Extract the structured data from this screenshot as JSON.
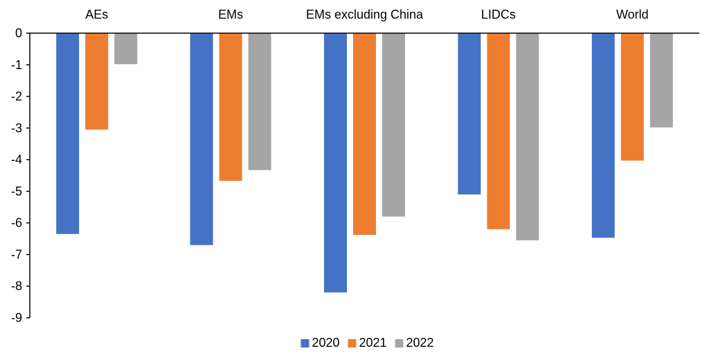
{
  "chart_data": {
    "type": "bar",
    "categories": [
      "AEs",
      "EMs",
      "EMs excluding China",
      "LIDCs",
      "World"
    ],
    "series": [
      {
        "name": "2020",
        "values": [
          -6.35,
          -6.7,
          -8.2,
          -5.1,
          -6.47
        ],
        "color": "#4472C4"
      },
      {
        "name": "2021",
        "values": [
          -3.05,
          -4.67,
          -6.38,
          -6.2,
          -4.03
        ],
        "color": "#ED7D31"
      },
      {
        "name": "2022",
        "values": [
          -0.98,
          -4.33,
          -5.8,
          -6.55,
          -2.98
        ],
        "color": "#A5A5A5"
      }
    ],
    "ylim": [
      -9,
      0
    ],
    "yticks": [
      0,
      -1,
      -2,
      -3,
      -4,
      -5,
      -6,
      -7,
      -8,
      -9
    ],
    "xaxis_position": "top",
    "legend_position": "bottom-center",
    "grid": false,
    "title": "",
    "xlabel": "",
    "ylabel": ""
  }
}
